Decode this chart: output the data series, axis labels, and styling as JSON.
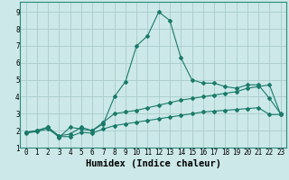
{
  "xlabel": "Humidex (Indice chaleur)",
  "bg_color": "#cce8e8",
  "grid_color": "#aacccc",
  "line_color": "#1a7a6a",
  "xlim": [
    -0.5,
    23.5
  ],
  "ylim": [
    1,
    9.6
  ],
  "xtick_labels": [
    "0",
    "1",
    "2",
    "3",
    "4",
    "5",
    "6",
    "7",
    "8",
    "9",
    "10",
    "11",
    "12",
    "13",
    "14",
    "15",
    "16",
    "17",
    "18",
    "19",
    "20",
    "21",
    "22",
    "23"
  ],
  "ytick_labels": [
    "1",
    "2",
    "3",
    "4",
    "5",
    "6",
    "7",
    "8",
    "9"
  ],
  "series": [
    {
      "x": [
        0,
        1,
        2,
        3,
        4,
        5,
        6,
        7,
        8,
        9,
        10,
        11,
        12,
        13,
        14,
        15,
        16,
        17,
        18,
        19,
        20,
        21,
        22,
        23
      ],
      "y": [
        1.9,
        2.0,
        2.2,
        1.6,
        2.2,
        2.1,
        2.0,
        2.4,
        4.0,
        4.9,
        7.0,
        7.6,
        9.0,
        8.5,
        6.3,
        5.0,
        4.8,
        4.8,
        4.6,
        4.5,
        4.7,
        4.7,
        3.9,
        3.0
      ]
    },
    {
      "x": [
        0,
        1,
        2,
        3,
        4,
        5,
        6,
        7,
        8,
        9,
        10,
        11,
        12,
        13,
        14,
        15,
        16,
        17,
        18,
        19,
        20,
        21,
        22,
        23
      ],
      "y": [
        1.9,
        2.0,
        2.2,
        1.7,
        1.8,
        2.2,
        2.0,
        2.5,
        3.0,
        3.1,
        3.2,
        3.35,
        3.5,
        3.65,
        3.8,
        3.9,
        4.0,
        4.1,
        4.2,
        4.3,
        4.5,
        4.6,
        4.7,
        2.95
      ]
    },
    {
      "x": [
        0,
        1,
        2,
        3,
        4,
        5,
        6,
        7,
        8,
        9,
        10,
        11,
        12,
        13,
        14,
        15,
        16,
        17,
        18,
        19,
        20,
        21,
        22,
        23
      ],
      "y": [
        1.85,
        1.95,
        2.1,
        1.65,
        1.65,
        1.9,
        1.85,
        2.1,
        2.3,
        2.4,
        2.5,
        2.6,
        2.7,
        2.8,
        2.9,
        3.0,
        3.1,
        3.15,
        3.2,
        3.25,
        3.3,
        3.35,
        2.95,
        2.95
      ]
    }
  ],
  "tick_fontsize": 5.5,
  "xlabel_fontsize": 7.5
}
